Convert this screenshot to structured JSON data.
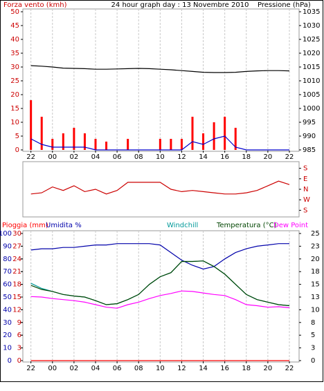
{
  "chart_data": [
    {
      "type": "line",
      "title": "24 hour graph day : 13 Novembre 2010",
      "ylabel": "Forza vento (kmh)",
      "y2label": "Pressione (hPa)",
      "x": [
        -2,
        -1,
        0,
        1,
        2,
        3,
        4,
        5,
        6,
        7,
        8,
        9,
        10,
        11,
        12,
        13,
        14,
        15,
        16,
        17,
        18,
        19,
        20,
        21,
        22
      ],
      "xlim": [
        -2.75,
        22.9
      ],
      "xticks": [
        {
          "value": -2,
          "label": "22"
        },
        {
          "value": 0,
          "label": "00"
        },
        {
          "value": 2,
          "label": "02"
        },
        {
          "value": 4,
          "label": "04"
        },
        {
          "value": 6,
          "label": "06"
        },
        {
          "value": 8,
          "label": "08"
        },
        10,
        12,
        14,
        16,
        18,
        20,
        22
      ],
      "ylim": [
        0,
        50
      ],
      "yticks": [
        0,
        5,
        10,
        15,
        20,
        25,
        30,
        35,
        40,
        45,
        50
      ],
      "y2lim": [
        985,
        1035
      ],
      "y2ticks": [
        985,
        990,
        995,
        1000,
        1005,
        1010,
        1015,
        1020,
        1025,
        1030,
        1035
      ],
      "grid": true,
      "series": [
        {
          "style": "bar",
          "color": "#ff0000",
          "values": [
            18,
            12,
            4,
            6,
            8,
            6,
            4,
            3,
            0,
            4,
            0,
            0,
            4,
            4,
            4,
            12,
            6,
            10,
            12,
            8,
            0,
            0,
            0,
            0,
            0
          ]
        },
        {
          "color": "#0000cc",
          "values": [
            4,
            2,
            1,
            1,
            1,
            1,
            0,
            0,
            0,
            0,
            0,
            0,
            0,
            0,
            0,
            3,
            2,
            4,
            5,
            1,
            0,
            0,
            0,
            0,
            0
          ]
        },
        {
          "color": "#000000",
          "axis": "y2",
          "values": [
            1015.5,
            1015.3,
            1015,
            1014.6,
            1014.5,
            1014.4,
            1014.2,
            1014.2,
            1014.3,
            1014.4,
            1014.5,
            1014.4,
            1014.2,
            1014,
            1013.7,
            1013.4,
            1013.1,
            1013,
            1013,
            1013.1,
            1013.4,
            1013.6,
            1013.7,
            1013.7,
            1013.6
          ]
        }
      ]
    },
    {
      "type": "line",
      "x": [
        -2,
        -1,
        0,
        1,
        2,
        3,
        4,
        5,
        6,
        7,
        8,
        9,
        10,
        11,
        12,
        13,
        14,
        15,
        16,
        17,
        18,
        19,
        20,
        21,
        22
      ],
      "xlim": [
        -2.75,
        22.9
      ],
      "ylim": [
        -225,
        225
      ],
      "yticks": [
        {
          "value": 180,
          "label": "S"
        },
        {
          "value": 90,
          "label": "E"
        },
        {
          "value": 0,
          "label": "N"
        },
        {
          "value": -90,
          "label": "W"
        },
        {
          "value": -180,
          "label": "S"
        }
      ],
      "grid": false,
      "series": [
        {
          "color": "#cc0000",
          "values": [
            -40,
            -30,
            20,
            -10,
            30,
            -20,
            0,
            -40,
            -10,
            60,
            60,
            60,
            60,
            0,
            -20,
            -10,
            -20,
            -30,
            -40,
            -40,
            -30,
            -10,
            30,
            70,
            40
          ]
        }
      ]
    },
    {
      "type": "line",
      "x": [
        -2,
        -1,
        0,
        1,
        2,
        3,
        4,
        5,
        6,
        7,
        8,
        9,
        10,
        11,
        12,
        13,
        14,
        15,
        16,
        17,
        18,
        19,
        20,
        21,
        22
      ],
      "xlim": [
        -2.75,
        22.9
      ],
      "xticks": [
        {
          "value": -2,
          "label": "22"
        },
        {
          "value": 0,
          "label": "00"
        },
        {
          "value": 2,
          "label": "02"
        },
        {
          "value": 4,
          "label": "04"
        },
        {
          "value": 6,
          "label": "06"
        },
        {
          "value": 8,
          "label": "08"
        },
        10,
        12,
        14,
        16,
        18,
        20,
        22
      ],
      "ylim": [
        0,
        100
      ],
      "yticks": [
        0,
        10,
        20,
        30,
        40,
        50,
        60,
        70,
        80,
        90,
        100
      ],
      "y3lim": [
        0,
        30
      ],
      "y3ticks": [
        0,
        3,
        6,
        9,
        12,
        15,
        18,
        21,
        24,
        27,
        30
      ],
      "y2lim": [
        0,
        25
      ],
      "y2ticks": [
        0,
        {
          "value": 2.5,
          "label": "3"
        },
        5,
        {
          "value": 7.5,
          "label": "8"
        },
        10,
        {
          "value": 12.5,
          "label": "13"
        },
        15,
        {
          "value": 17.5,
          "label": "18"
        },
        20,
        {
          "value": 22.5,
          "label": "23"
        },
        25
      ],
      "grid": true,
      "series": [
        {
          "name": "Pioggia (mm)",
          "color": "#ff0000",
          "axis": "y3",
          "values": [
            0,
            0,
            0,
            0,
            0,
            0,
            0,
            0,
            0,
            0,
            0,
            0,
            0,
            0,
            0,
            0,
            0,
            0,
            0,
            0,
            0,
            0,
            0,
            0,
            0
          ]
        },
        {
          "name": "Umidita %",
          "color": "#0000aa",
          "values": [
            87,
            88,
            88,
            89,
            89,
            90,
            91,
            91,
            92,
            92,
            92,
            92,
            91,
            85,
            79,
            75,
            72,
            74,
            80,
            85,
            88,
            90,
            91,
            92,
            92
          ]
        },
        {
          "name": "Windchill",
          "color": "#009999",
          "axis": "y2",
          "values": [
            15.2,
            14.2,
            13.6,
            13,
            12.7,
            12.5,
            11.8,
            11,
            11.2,
            12,
            13,
            15,
            16.5,
            17.3,
            19.5,
            19.5,
            19.6,
            18.5,
            17,
            15,
            13,
            12,
            11.5,
            11,
            10.8
          ]
        },
        {
          "name": "Temperatura (°C)",
          "color": "#004400",
          "axis": "y2",
          "values": [
            14.8,
            14,
            13.6,
            13,
            12.7,
            12.5,
            11.8,
            11,
            11.2,
            12,
            13,
            15,
            16.5,
            17.3,
            19.5,
            19.5,
            19.6,
            18.5,
            17,
            15,
            13,
            12,
            11.5,
            11,
            10.8
          ]
        },
        {
          "name": "Dew Point",
          "color": "#ff00ff",
          "axis": "y2",
          "values": [
            12.6,
            12.5,
            12.2,
            12,
            11.8,
            11.5,
            11,
            10.5,
            10.3,
            11,
            11.5,
            12.2,
            12.8,
            13.2,
            13.7,
            13.6,
            13.3,
            13,
            12.8,
            12,
            11,
            10.8,
            10.5,
            10.6,
            10.4
          ]
        }
      ]
    }
  ]
}
